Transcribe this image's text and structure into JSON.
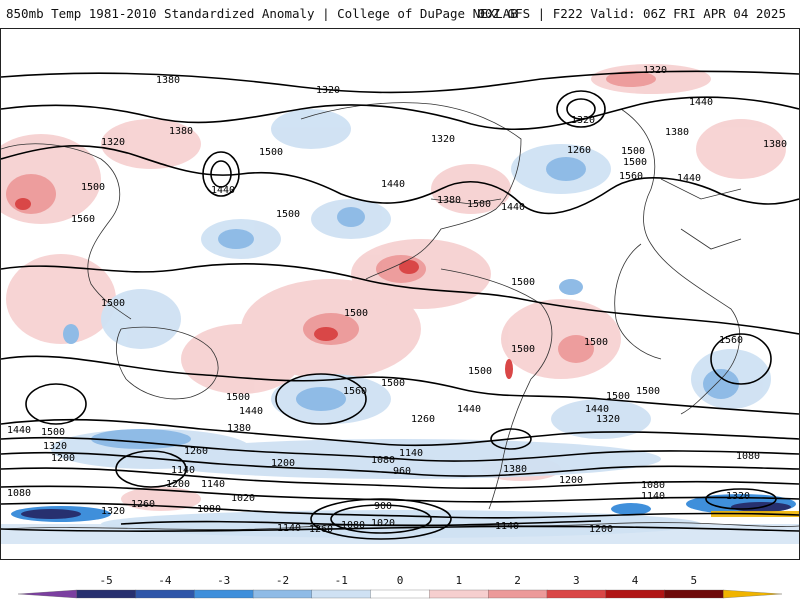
{
  "header": {
    "title": "850mb Temp 1981-2010 Standardized Anomaly | College of DuPage NEXLAB",
    "run_info": "00Z GFS | F222 Valid: 06Z FRI APR 04 2025"
  },
  "map": {
    "contour_labels": [
      "1380",
      "1320",
      "1320",
      "1380",
      "1320",
      "1500",
      "1440",
      "1500",
      "1560",
      "1500",
      "1440",
      "1380",
      "1500",
      "1440",
      "1320",
      "1320",
      "1260",
      "1440",
      "1380",
      "1500",
      "1500",
      "1560",
      "1440",
      "1500",
      "1500",
      "1500",
      "1500",
      "1500",
      "1500",
      "1500",
      "1500",
      "1560",
      "1500",
      "1560",
      "1440",
      "1440",
      "1380",
      "1440",
      "1500",
      "1320",
      "1200",
      "1260",
      "1200",
      "1140",
      "1200",
      "1140",
      "1080",
      "1020",
      "1260",
      "1080",
      "1140",
      "1260",
      "1080",
      "1020",
      "900",
      "960",
      "1080",
      "1140",
      "1380",
      "1260",
      "1320",
      "1440",
      "1500",
      "1200",
      "1140",
      "1080",
      "1080",
      "1320",
      "1140",
      "1200",
      "1320",
      "1380"
    ]
  },
  "colorbar": {
    "ticks": [
      "-5",
      "-4",
      "-3",
      "-2",
      "-1",
      "0",
      "1",
      "2",
      "3",
      "4",
      "5"
    ],
    "colors": [
      "#7b3fa0",
      "#27306f",
      "#2f56a8",
      "#3f8fdb",
      "#8fbbe6",
      "#cfe1f3",
      "#ffffff",
      "#f6cfcf",
      "#ec9a9a",
      "#d94747",
      "#b01515",
      "#6e0a0a",
      "#f0b400"
    ]
  }
}
